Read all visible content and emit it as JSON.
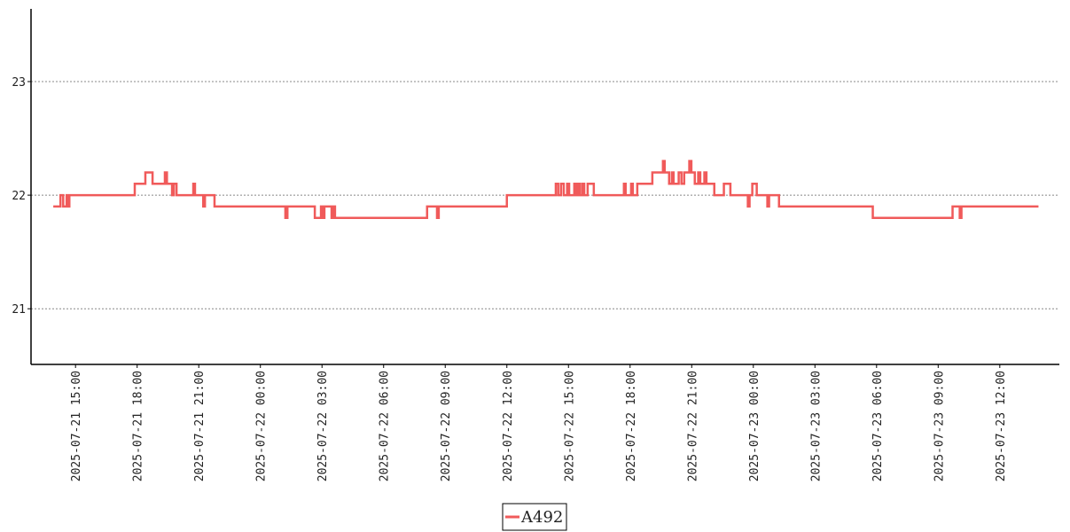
{
  "chart_data": {
    "type": "line",
    "step": "post",
    "x": [
      "2025-07-21 13:55",
      "2025-07-21 14:16",
      "2025-07-21 14:24",
      "2025-07-21 14:34",
      "2025-07-21 14:39",
      "2025-07-21 14:42",
      "2025-07-21 17:53",
      "2025-07-21 18:24",
      "2025-07-21 18:45",
      "2025-07-21 19:21",
      "2025-07-21 19:27",
      "2025-07-21 19:42",
      "2025-07-21 19:47",
      "2025-07-21 19:55",
      "2025-07-21 20:44",
      "2025-07-21 20:49",
      "2025-07-21 21:13",
      "2025-07-21 21:18",
      "2025-07-21 21:46",
      "2025-07-22 01:13",
      "2025-07-22 01:19",
      "2025-07-22 02:39",
      "2025-07-22 02:57",
      "2025-07-22 03:02",
      "2025-07-22 03:07",
      "2025-07-22 03:28",
      "2025-07-22 03:33",
      "2025-07-22 03:38",
      "2025-07-22 08:07",
      "2025-07-22 08:36",
      "2025-07-22 08:41",
      "2025-07-22 12:00",
      "2025-07-22 14:23",
      "2025-07-22 14:30",
      "2025-07-22 14:38",
      "2025-07-22 14:46",
      "2025-07-22 14:56",
      "2025-07-22 15:02",
      "2025-07-22 15:17",
      "2025-07-22 15:22",
      "2025-07-22 15:27",
      "2025-07-22 15:33",
      "2025-07-22 15:40",
      "2025-07-22 15:46",
      "2025-07-22 15:56",
      "2025-07-22 16:14",
      "2025-07-22 17:42",
      "2025-07-22 17:47",
      "2025-07-22 18:03",
      "2025-07-22 18:08",
      "2025-07-22 18:21",
      "2025-07-22 19:05",
      "2025-07-22 19:36",
      "2025-07-22 19:41",
      "2025-07-22 19:54",
      "2025-07-22 20:02",
      "2025-07-22 20:07",
      "2025-07-22 20:22",
      "2025-07-22 20:30",
      "2025-07-22 20:38",
      "2025-07-22 20:53",
      "2025-07-22 20:59",
      "2025-07-22 21:09",
      "2025-07-22 21:19",
      "2025-07-22 21:25",
      "2025-07-22 21:37",
      "2025-07-22 21:43",
      "2025-07-22 22:06",
      "2025-07-22 22:34",
      "2025-07-22 22:53",
      "2025-07-22 23:44",
      "2025-07-22 23:49",
      "2025-07-22 23:57",
      "2025-07-23 00:10",
      "2025-07-23 00:41",
      "2025-07-23 00:46",
      "2025-07-23 01:15",
      "2025-07-23 05:49",
      "2025-07-23 09:42",
      "2025-07-23 10:03",
      "2025-07-23 10:08",
      "2025-07-23 13:53"
    ],
    "series": [
      {
        "name": "A492",
        "color": "#f05a5a",
        "values": [
          21.9,
          22.0,
          21.9,
          22.0,
          21.9,
          22.0,
          22.1,
          22.2,
          22.1,
          22.2,
          22.1,
          22.0,
          22.1,
          22.0,
          22.1,
          22.0,
          21.9,
          22.0,
          21.9,
          21.8,
          21.9,
          21.8,
          21.9,
          21.8,
          21.9,
          21.8,
          21.9,
          21.8,
          21.9,
          21.8,
          21.9,
          22.0,
          22.1,
          22.0,
          22.1,
          22.0,
          22.1,
          22.0,
          22.1,
          22.0,
          22.1,
          22.0,
          22.1,
          22.0,
          22.1,
          22.0,
          22.1,
          22.0,
          22.1,
          22.0,
          22.1,
          22.2,
          22.3,
          22.2,
          22.1,
          22.2,
          22.1,
          22.2,
          22.1,
          22.2,
          22.3,
          22.2,
          22.1,
          22.2,
          22.1,
          22.2,
          22.1,
          22.0,
          22.1,
          22.0,
          21.9,
          22.0,
          22.1,
          22.0,
          21.9,
          22.0,
          21.9,
          21.8,
          21.9,
          21.8,
          21.9,
          21.9
        ]
      }
    ],
    "xlim": [
      "2025-07-21 12:50",
      "2025-07-23 14:54"
    ],
    "xticks": [
      "2025-07-21 15:00",
      "2025-07-21 18:00",
      "2025-07-21 21:00",
      "2025-07-22 00:00",
      "2025-07-22 03:00",
      "2025-07-22 06:00",
      "2025-07-22 09:00",
      "2025-07-22 12:00",
      "2025-07-22 15:00",
      "2025-07-22 18:00",
      "2025-07-22 21:00",
      "2025-07-23 00:00",
      "2025-07-23 03:00",
      "2025-07-23 06:00",
      "2025-07-23 09:00",
      "2025-07-23 12:00"
    ],
    "ylim": [
      20.51,
      23.64
    ],
    "yticks": [
      21,
      22,
      23
    ],
    "grid": true,
    "legend": "bottom"
  }
}
